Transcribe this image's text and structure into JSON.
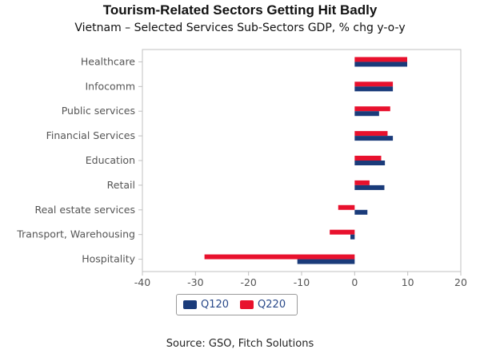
{
  "title": "Tourism-Related Sectors Getting Hit Badly",
  "subtitle": "Vietnam – Selected Services Sub-Sectors GDP, % chg y-o-y",
  "source": "Source: GSO, Fitch Solutions",
  "colors": {
    "Q120": "#1a3b7a",
    "Q220": "#e8112d",
    "axis": "#c0c0c0",
    "label": "#555555",
    "legend_text": "#2a4a8a"
  },
  "chart_data": {
    "type": "bar",
    "orientation": "horizontal",
    "categories": [
      "Healthcare",
      "Infocomm",
      "Public services",
      "Financial Services",
      "Education",
      "Retail",
      "Real estate services",
      "Transport, Warehousing",
      "Hospitality"
    ],
    "series": [
      {
        "name": "Q120",
        "values": [
          9.9,
          7.2,
          4.6,
          7.2,
          5.7,
          5.6,
          2.4,
          -0.8,
          -10.8
        ]
      },
      {
        "name": "Q220",
        "values": [
          9.9,
          7.2,
          6.7,
          6.2,
          5.0,
          2.8,
          -3.1,
          -4.7,
          -28.3
        ]
      }
    ],
    "xlim": [
      -40,
      20
    ],
    "xticks": [
      -40,
      -30,
      -20,
      -10,
      0,
      10,
      20
    ],
    "legend_position": "bottom-center",
    "grid": false
  }
}
